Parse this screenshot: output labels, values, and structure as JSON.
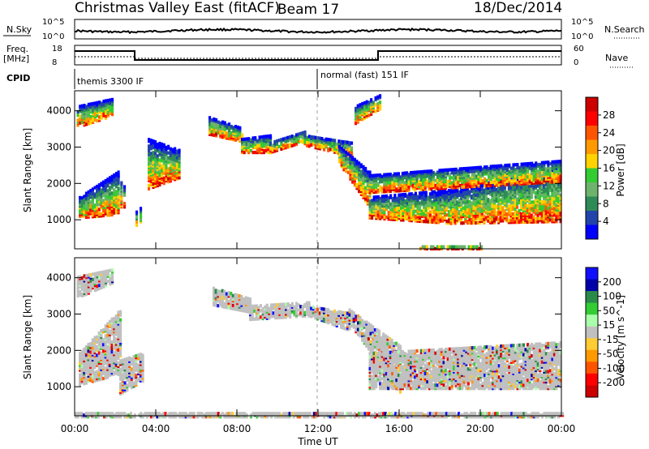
{
  "header": {
    "title": "Christmas Valley East (fitACF)",
    "beam": "Beam 17",
    "date": "18/Dec/2014"
  },
  "top_panels": {
    "nsky_label": "N.Sky",
    "nsearch_label": "N.Search",
    "nsky_ticks": [
      "10^5",
      "10^0"
    ],
    "nsearch_ticks": [
      "10^5",
      "10^0"
    ],
    "freq_label": "Freq.",
    "freq_unit": "[MHz]",
    "freq_ticks": [
      "18",
      "8"
    ],
    "nave_label": "Nave",
    "nave_ticks": [
      "60",
      "0"
    ],
    "cpid_label": "CPID",
    "cpid_segments": [
      "themis 3300 IF",
      "normal (fast) 151 IF"
    ]
  },
  "colors": {
    "power_scale": [
      "#0000ff",
      "#2244aa",
      "#2e8b57",
      "#6db36d",
      "#33cc33",
      "#ffd200",
      "#ff9900",
      "#ff5500",
      "#ff0000",
      "#cc0000"
    ],
    "velocity_scale": [
      "#1010ff",
      "#0000aa",
      "#2a8a4a",
      "#33cc33",
      "#aaffaa",
      "#c0c0c0",
      "#ffcc33",
      "#ff9900",
      "#ff5500",
      "#ff0000",
      "#cc0000"
    ],
    "ground_scatter": "#c0c0c0"
  },
  "chart_data": [
    {
      "type": "heatmap",
      "name": "power",
      "xlabel": "Time UT",
      "ylabel": "Slant Range [km]",
      "x_ticks": [
        "00:00",
        "04:00",
        "08:00",
        "12:00",
        "16:00",
        "20:00",
        "00:00"
      ],
      "y_ticks": [
        "1000",
        "2000",
        "3000",
        "4000"
      ],
      "ylim": [
        200,
        4550
      ],
      "xlim_hours": [
        0,
        24
      ],
      "colorbar": {
        "label": "Power [dB]",
        "ticks": [
          "28",
          "24",
          "20",
          "16",
          "12",
          "8",
          "4"
        ]
      },
      "bands": [
        {
          "t": [
            0.2,
            2.1
          ],
          "r_low": [
            1100,
            1200
          ],
          "r_high": [
            1700,
            2400
          ]
        },
        {
          "t": [
            2.1,
            2.4
          ],
          "r_low": [
            1400,
            1400
          ],
          "r_high": [
            2300,
            2000
          ]
        },
        {
          "t": [
            3.0,
            3.2
          ],
          "r_low": [
            850,
            900
          ],
          "r_high": [
            1300,
            1400
          ]
        },
        {
          "t": [
            0.1,
            1.8
          ],
          "r_low": [
            3600,
            3900
          ],
          "r_high": [
            4200,
            4400
          ]
        },
        {
          "t": [
            3.6,
            5.1
          ],
          "r_low": [
            1900,
            2200
          ],
          "r_high": [
            3300,
            3000
          ]
        },
        {
          "t": [
            6.6,
            8.2
          ],
          "r_low": [
            3400,
            3200
          ],
          "r_high": [
            3900,
            3600
          ]
        },
        {
          "t": [
            8.2,
            9.6
          ],
          "r_low": [
            2900,
            2900
          ],
          "r_high": [
            3300,
            3400
          ]
        },
        {
          "t": [
            9.6,
            11.3
          ],
          "r_low": [
            2900,
            3200
          ],
          "r_high": [
            3200,
            3500
          ]
        },
        {
          "t": [
            11.3,
            13.6
          ],
          "r_low": [
            3100,
            2800
          ],
          "r_high": [
            3400,
            3200
          ]
        },
        {
          "t": [
            13.0,
            14.5
          ],
          "r_low": [
            2600,
            1400
          ],
          "r_high": [
            3100,
            2400
          ]
        },
        {
          "t": [
            14.5,
            18.5
          ],
          "r_low": [
            1100,
            950
          ],
          "r_high": [
            1700,
            1900
          ]
        },
        {
          "t": [
            18.5,
            23.9
          ],
          "r_low": [
            950,
            1000
          ],
          "r_high": [
            1900,
            2500
          ]
        },
        {
          "t": [
            14.5,
            23.9
          ],
          "r_low": [
            1800,
            2100
          ],
          "r_high": [
            2300,
            2700
          ]
        },
        {
          "t": [
            13.8,
            15.0
          ],
          "r_low": [
            3700,
            4100
          ],
          "r_high": [
            4200,
            4500
          ]
        },
        {
          "t": [
            17.0,
            20.0
          ],
          "r_low": [
            250,
            250
          ],
          "r_high": [
            350,
            350
          ]
        }
      ]
    },
    {
      "type": "heatmap",
      "name": "velocity",
      "xlabel": "Time UT",
      "ylabel": "Slant Range [km]",
      "x_ticks": [
        "00:00",
        "04:00",
        "08:00",
        "12:00",
        "16:00",
        "20:00",
        "00:00"
      ],
      "y_ticks": [
        "1000",
        "2000",
        "3000",
        "4000"
      ],
      "ylim": [
        200,
        4550
      ],
      "xlim_hours": [
        0,
        24
      ],
      "colorbar": {
        "label": "Velocity [m s^-1]",
        "ticks": [
          "200",
          "100",
          "50",
          "15",
          "-15",
          "-50",
          "-100",
          "-200"
        ]
      },
      "bands": [
        {
          "t": [
            0.2,
            2.2
          ],
          "r_low": [
            1100,
            1400
          ],
          "r_high": [
            2000,
            3200
          ]
        },
        {
          "t": [
            2.2,
            3.3
          ],
          "r_low": [
            850,
            1200
          ],
          "r_high": [
            1800,
            2000
          ]
        },
        {
          "t": [
            0.1,
            1.8
          ],
          "r_low": [
            3500,
            3900
          ],
          "r_high": [
            4100,
            4300
          ]
        },
        {
          "t": [
            6.8,
            8.6
          ],
          "r_low": [
            3300,
            3100
          ],
          "r_high": [
            3800,
            3500
          ]
        },
        {
          "t": [
            8.6,
            11.5
          ],
          "r_low": [
            2900,
            3000
          ],
          "r_high": [
            3300,
            3400
          ]
        },
        {
          "t": [
            11.5,
            13.5
          ],
          "r_low": [
            3000,
            2600
          ],
          "r_high": [
            3300,
            3100
          ]
        },
        {
          "t": [
            13.5,
            16.0
          ],
          "r_low": [
            2800,
            900
          ],
          "r_high": [
            3200,
            2200
          ]
        },
        {
          "t": [
            14.5,
            23.9
          ],
          "r_low": [
            1000,
            1000
          ],
          "r_high": [
            2000,
            2300
          ]
        },
        {
          "t": [
            0.0,
            24.0
          ],
          "r_low": [
            220,
            220
          ],
          "r_high": [
            350,
            350
          ]
        }
      ]
    }
  ]
}
